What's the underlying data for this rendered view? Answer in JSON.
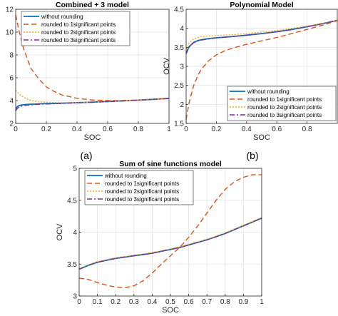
{
  "panel_labels": [
    "(a)",
    "(b)"
  ],
  "legend_entries": [
    "without rounding",
    "rounded to 1significant points",
    "rounded to 2significant points",
    "rounded to 3significant points"
  ],
  "series_colors": [
    "#0072BD",
    "#D95319",
    "#EDB120",
    "#7E2F8E"
  ],
  "chart_data": [
    {
      "type": "line",
      "title": "Combined + 3 model",
      "xlabel": "SOC",
      "ylabel": "",
      "xlim": [
        0,
        1
      ],
      "ylim": [
        2,
        12
      ],
      "xticks": [
        0,
        0.2,
        0.4,
        0.6,
        0.8,
        1
      ],
      "xtick_labels": [
        "0",
        "0.2",
        "0.4",
        "0.6",
        "0.8",
        "1"
      ],
      "yticks": [
        2,
        4,
        6,
        8,
        10,
        12
      ],
      "ytick_labels": [
        "2",
        "4",
        "6",
        "8",
        "10",
        "12"
      ],
      "grid": true,
      "legend_position": "top-left",
      "series": [
        {
          "name": "without rounding",
          "x": [
            0,
            0.01,
            0.02,
            0.04,
            0.07,
            0.1,
            0.15,
            0.2,
            0.3,
            0.4,
            0.5,
            0.6,
            0.7,
            0.8,
            0.9,
            1.0
          ],
          "values": [
            3.3,
            3.45,
            3.55,
            3.62,
            3.66,
            3.68,
            3.71,
            3.73,
            3.77,
            3.82,
            3.86,
            3.92,
            3.98,
            4.04,
            4.11,
            4.19
          ]
        },
        {
          "name": "rounded to 1significant points",
          "x": [
            0,
            0.02,
            0.05,
            0.08,
            0.1,
            0.15,
            0.2,
            0.25,
            0.3,
            0.4,
            0.5,
            0.6,
            0.7,
            0.8,
            0.9,
            1.0
          ],
          "values": [
            11.5,
            10.2,
            8.6,
            7.5,
            6.8,
            5.9,
            5.2,
            4.8,
            4.5,
            4.2,
            4.05,
            4.0,
            4.0,
            4.05,
            4.12,
            4.2
          ]
        },
        {
          "name": "rounded to 2significant points",
          "x": [
            0,
            0.02,
            0.05,
            0.08,
            0.1,
            0.15,
            0.2,
            0.3,
            0.4,
            0.5,
            0.6,
            0.7,
            0.8,
            0.9,
            1.0
          ],
          "values": [
            4.9,
            4.6,
            4.3,
            4.1,
            4.0,
            3.9,
            3.85,
            3.82,
            3.84,
            3.87,
            3.92,
            3.98,
            4.05,
            4.12,
            4.2
          ]
        },
        {
          "name": "rounded to 3significant points",
          "x": [
            0,
            0.01,
            0.02,
            0.04,
            0.07,
            0.1,
            0.15,
            0.2,
            0.3,
            0.4,
            0.5,
            0.6,
            0.7,
            0.8,
            0.9,
            1.0
          ],
          "values": [
            3.1,
            3.3,
            3.42,
            3.52,
            3.59,
            3.63,
            3.67,
            3.7,
            3.75,
            3.8,
            3.85,
            3.91,
            3.97,
            4.04,
            4.11,
            4.19
          ]
        }
      ]
    },
    {
      "type": "line",
      "title": "Polynomial Model",
      "xlabel": "SOC",
      "ylabel": "OCV",
      "xlim": [
        0,
        1
      ],
      "ylim": [
        1.5,
        4.5
      ],
      "xticks": [
        0,
        0.2,
        0.4,
        0.6,
        0.8
      ],
      "xtick_labels": [
        "0",
        "0.2",
        "0.4",
        "0.6",
        "0.8"
      ],
      "yticks": [
        1.5,
        2,
        2.5,
        3,
        3.5,
        4,
        4.5
      ],
      "ytick_labels": [
        "1.5",
        "2",
        "2.5",
        "3",
        "3.5",
        "4",
        "4.5"
      ],
      "grid": true,
      "legend_position": "bottom-right",
      "series": [
        {
          "name": "without rounding",
          "x": [
            0,
            0.02,
            0.05,
            0.08,
            0.1,
            0.15,
            0.2,
            0.3,
            0.4,
            0.5,
            0.6,
            0.7,
            0.8,
            0.9,
            1.0
          ],
          "values": [
            3.35,
            3.52,
            3.63,
            3.68,
            3.7,
            3.73,
            3.75,
            3.78,
            3.82,
            3.86,
            3.91,
            3.97,
            4.04,
            4.12,
            4.21
          ]
        },
        {
          "name": "rounded to 1significant points",
          "x": [
            0,
            0.02,
            0.05,
            0.08,
            0.1,
            0.15,
            0.2,
            0.25,
            0.3,
            0.4,
            0.5,
            0.6,
            0.7,
            0.8,
            0.9,
            1.0
          ],
          "values": [
            1.6,
            2.05,
            2.5,
            2.78,
            2.92,
            3.15,
            3.3,
            3.4,
            3.47,
            3.58,
            3.67,
            3.76,
            3.86,
            3.97,
            4.08,
            4.2
          ]
        },
        {
          "name": "rounded to 2significant points",
          "x": [
            0,
            0.02,
            0.05,
            0.08,
            0.1,
            0.15,
            0.2,
            0.3,
            0.4,
            0.5,
            0.6,
            0.7,
            0.8,
            0.9,
            1.0
          ],
          "values": [
            3.45,
            3.62,
            3.72,
            3.76,
            3.78,
            3.8,
            3.81,
            3.83,
            3.86,
            3.9,
            3.94,
            4.0,
            4.06,
            4.13,
            4.21
          ]
        },
        {
          "name": "rounded to 3significant points",
          "x": [
            0,
            0.02,
            0.05,
            0.08,
            0.1,
            0.15,
            0.2,
            0.3,
            0.4,
            0.5,
            0.6,
            0.7,
            0.8,
            0.9,
            1.0
          ],
          "values": [
            3.33,
            3.5,
            3.62,
            3.67,
            3.69,
            3.72,
            3.75,
            3.78,
            3.82,
            3.86,
            3.91,
            3.97,
            4.04,
            4.12,
            4.21
          ]
        }
      ]
    },
    {
      "type": "line",
      "title": "Sum of sine functions model",
      "xlabel": "SOC",
      "ylabel": "OCV",
      "xlim": [
        0,
        1
      ],
      "ylim": [
        3,
        5
      ],
      "xticks": [
        0,
        0.1,
        0.2,
        0.3,
        0.4,
        0.5,
        0.6,
        0.7,
        0.8,
        0.9,
        1
      ],
      "xtick_labels": [
        "0",
        "0.1",
        "0.2",
        "0.3",
        "0.4",
        "0.5",
        "0.6",
        "0.7",
        "0.8",
        "0.9",
        "1"
      ],
      "yticks": [
        3,
        3.5,
        4,
        4.5,
        5
      ],
      "ytick_labels": [
        "3",
        "3.5",
        "4",
        "4.5",
        "5"
      ],
      "grid": true,
      "legend_position": "top-left",
      "series": [
        {
          "name": "without rounding",
          "x": [
            0,
            0.05,
            0.1,
            0.15,
            0.2,
            0.25,
            0.3,
            0.35,
            0.4,
            0.45,
            0.5,
            0.55,
            0.6,
            0.65,
            0.7,
            0.75,
            0.8,
            0.85,
            0.9,
            0.95,
            1.0
          ],
          "values": [
            3.42,
            3.48,
            3.53,
            3.56,
            3.59,
            3.61,
            3.63,
            3.65,
            3.67,
            3.7,
            3.73,
            3.76,
            3.8,
            3.84,
            3.88,
            3.93,
            3.98,
            4.04,
            4.1,
            4.16,
            4.22
          ]
        },
        {
          "name": "rounded to 1significant points",
          "x": [
            0,
            0.05,
            0.1,
            0.15,
            0.2,
            0.25,
            0.3,
            0.35,
            0.4,
            0.45,
            0.5,
            0.55,
            0.6,
            0.65,
            0.7,
            0.75,
            0.8,
            0.85,
            0.9,
            0.95,
            1.0
          ],
          "values": [
            3.28,
            3.26,
            3.21,
            3.17,
            3.14,
            3.13,
            3.16,
            3.24,
            3.36,
            3.5,
            3.63,
            3.76,
            3.92,
            4.1,
            4.3,
            4.5,
            4.67,
            4.79,
            4.86,
            4.9,
            4.9
          ]
        },
        {
          "name": "rounded to 2significant points",
          "x": [
            0,
            0.05,
            0.1,
            0.15,
            0.2,
            0.25,
            0.3,
            0.35,
            0.4,
            0.45,
            0.5,
            0.55,
            0.6,
            0.65,
            0.7,
            0.75,
            0.8,
            0.85,
            0.9,
            0.95,
            1.0
          ],
          "values": [
            3.43,
            3.49,
            3.54,
            3.57,
            3.6,
            3.62,
            3.64,
            3.66,
            3.68,
            3.71,
            3.74,
            3.77,
            3.81,
            3.85,
            3.89,
            3.94,
            3.99,
            4.05,
            4.11,
            4.17,
            4.23
          ]
        },
        {
          "name": "rounded to 3significant points",
          "x": [
            0,
            0.05,
            0.1,
            0.15,
            0.2,
            0.25,
            0.3,
            0.35,
            0.4,
            0.45,
            0.5,
            0.55,
            0.6,
            0.65,
            0.7,
            0.75,
            0.8,
            0.85,
            0.9,
            0.95,
            1.0
          ],
          "values": [
            3.42,
            3.48,
            3.53,
            3.56,
            3.59,
            3.61,
            3.63,
            3.65,
            3.67,
            3.7,
            3.73,
            3.76,
            3.8,
            3.84,
            3.88,
            3.93,
            3.98,
            4.04,
            4.1,
            4.16,
            4.22
          ]
        }
      ]
    }
  ]
}
